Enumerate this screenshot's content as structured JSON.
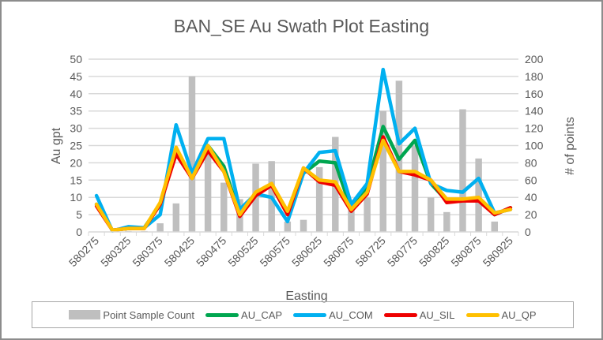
{
  "chart_data": {
    "type": "bar+line",
    "title": "BAN_SE Au Swath Plot Easting",
    "xlabel": "Easting",
    "ylabel": "Au gpt",
    "y2label": "# of points",
    "ylim": [
      0,
      50
    ],
    "y2lim": [
      0,
      200
    ],
    "yticks": [
      "0",
      "5",
      "10",
      "15",
      "20",
      "25",
      "30",
      "35",
      "40",
      "45",
      "50"
    ],
    "y2ticks": [
      "0",
      "20",
      "40",
      "60",
      "80",
      "100",
      "120",
      "140",
      "160",
      "180",
      "200"
    ],
    "grid": true,
    "legend_position": "bottom",
    "categories": [
      580275,
      580300,
      580325,
      580350,
      580375,
      580400,
      580425,
      580450,
      580475,
      580500,
      580525,
      580550,
      580575,
      580600,
      580625,
      580650,
      580675,
      580700,
      580725,
      580750,
      580775,
      580800,
      580825,
      580850,
      580875,
      580900,
      580925
    ],
    "xtick_labels": [
      "580275",
      "580325",
      "580375",
      "580425",
      "580475",
      "580525",
      "580575",
      "580625",
      "580675",
      "580725",
      "580775",
      "580825",
      "580875",
      "580925"
    ],
    "bar_series": {
      "name": "Point Sample Count",
      "color": "#bfbfbf",
      "axis": "right",
      "values": [
        0,
        0,
        1,
        1,
        10,
        33,
        180,
        90,
        57,
        38,
        79,
        82,
        12,
        14,
        75,
        110,
        25,
        40,
        140,
        175,
        100,
        40,
        23,
        142,
        85,
        12,
        0
      ]
    },
    "series": [
      {
        "name": "AU_CAP",
        "color": "#00a650",
        "values": [
          8,
          0.5,
          1,
          1.2,
          8,
          23,
          15.5,
          25,
          19,
          5,
          11,
          13.5,
          5.5,
          17,
          20.5,
          20,
          6.5,
          13,
          30.5,
          21,
          26.5,
          14,
          9,
          9.5,
          9.5,
          5,
          7
        ]
      },
      {
        "name": "AU_COM",
        "color": "#00b0f0",
        "values": [
          10.5,
          0.3,
          1.5,
          1.2,
          5,
          31,
          17,
          27,
          27,
          6.5,
          11,
          10,
          3,
          17,
          23,
          23.5,
          8,
          14,
          47,
          25.5,
          30,
          14,
          12,
          11.5,
          15.5,
          5.5,
          6.5
        ]
      },
      {
        "name": "AU_SIL",
        "color": "#ee0000",
        "values": [
          7.5,
          0.5,
          1,
          1,
          8,
          22.5,
          15.5,
          23.5,
          17.5,
          4.5,
          10.5,
          13.5,
          5,
          18.5,
          14.5,
          13.5,
          6,
          11,
          27.5,
          17.5,
          16.5,
          15,
          8.5,
          9,
          9,
          5,
          7
        ]
      },
      {
        "name": "AU_QP",
        "color": "#ffc000",
        "values": [
          8,
          0.5,
          1,
          1,
          8.5,
          24.5,
          15.5,
          25,
          17.5,
          5,
          11.5,
          14,
          6,
          18.5,
          15,
          14.5,
          6.5,
          11.5,
          26.5,
          17.5,
          17.5,
          15,
          9.5,
          9.5,
          10,
          5.5,
          6.5
        ]
      }
    ]
  }
}
